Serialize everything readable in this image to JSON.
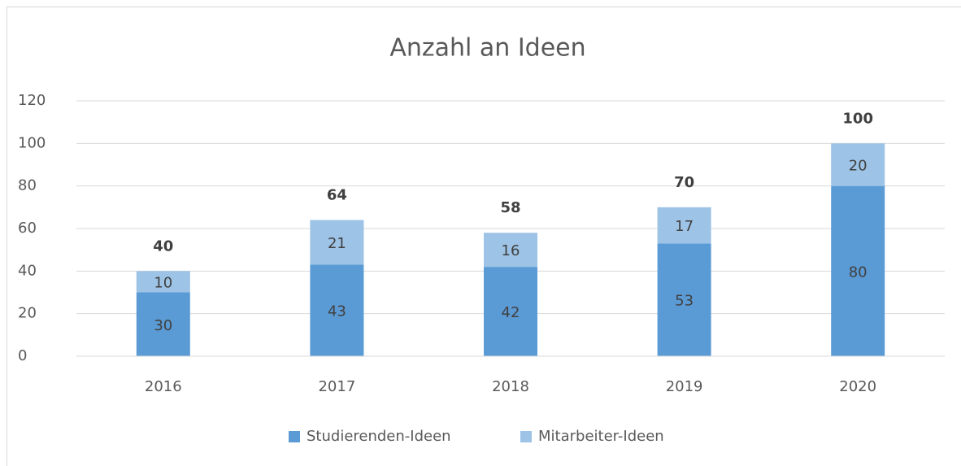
{
  "chart_data": {
    "type": "stacked_bar",
    "title": "Anzahl an Ideen",
    "categories": [
      "2016",
      "2017",
      "2018",
      "2019",
      "2020"
    ],
    "series": [
      {
        "name": "Studierenden-Ideen",
        "color": "#5b9bd5",
        "values": [
          30,
          43,
          42,
          53,
          80
        ]
      },
      {
        "name": "Mitarbeiter-Ideen",
        "color": "#9dc3e6",
        "values": [
          10,
          21,
          16,
          17,
          20
        ]
      }
    ],
    "totals": [
      40,
      64,
      58,
      70,
      100
    ],
    "ylim": [
      0,
      120
    ],
    "yticks": [
      0,
      20,
      40,
      60,
      80,
      100,
      120
    ],
    "grid": true,
    "legend": "bottom"
  }
}
